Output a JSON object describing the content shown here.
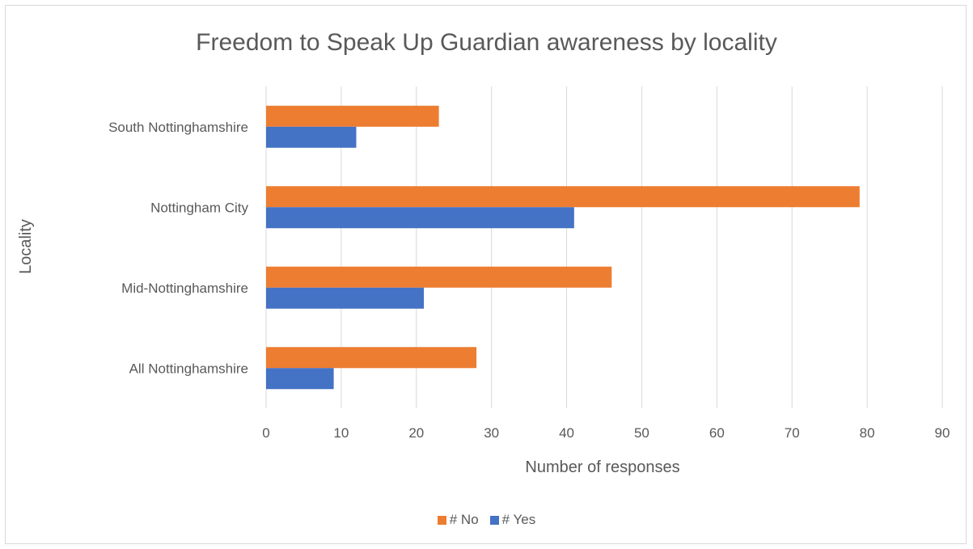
{
  "chart_data": {
    "type": "bar",
    "orientation": "horizontal",
    "title": "Freedom to Speak Up Guardian awareness by locality",
    "xlabel": "Number of responses",
    "ylabel": "Locality",
    "categories": [
      "All Nottinghamshire",
      "Mid-Nottinghamshire",
      "Nottingham City",
      "South Nottinghamshire"
    ],
    "series": [
      {
        "name": "# No",
        "color": "#ED7D31",
        "values": [
          28,
          46,
          79,
          23
        ]
      },
      {
        "name": "# Yes",
        "color": "#4472C4",
        "values": [
          9,
          21,
          41,
          12
        ]
      }
    ],
    "xlim": [
      0,
      90
    ],
    "xticks": [
      0,
      10,
      20,
      30,
      40,
      50,
      60,
      70,
      80,
      90
    ],
    "grid": true,
    "legend_position": "bottom"
  }
}
